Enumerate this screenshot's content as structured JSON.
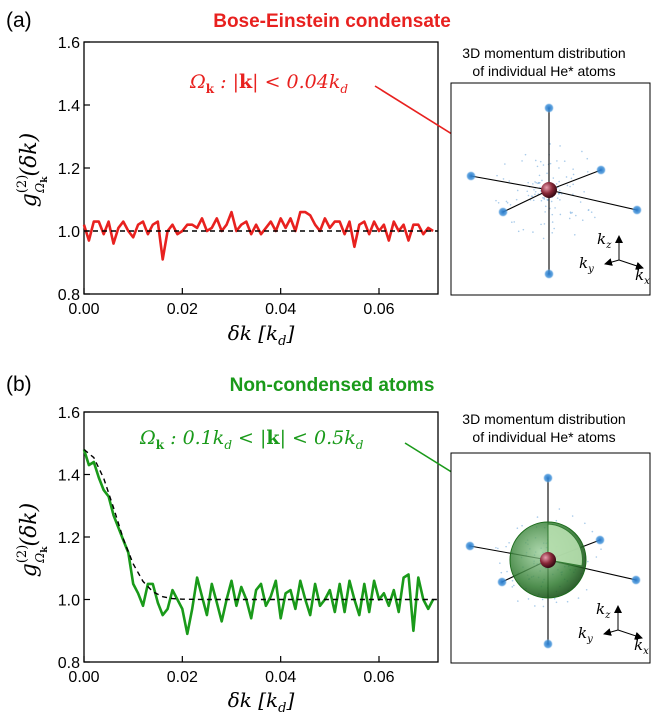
{
  "colors": {
    "bec": "#e8211f",
    "thermal": "#1a9a1a",
    "fit": "#000000",
    "accent_blob": "#3a8ed8",
    "sphere": "#8a2a3a"
  },
  "panels": [
    {
      "label": "(a)",
      "title": "Bose-Einstein condensate",
      "title_color": "#e8211f",
      "annotation": "Ω_k :  |k| < 0.04k_d",
      "inset": {
        "caption_line1": "3D momentum distribution",
        "caption_line2": "of individual He* atoms",
        "axis_labels": [
          "k_z",
          "k_y",
          "k_x"
        ],
        "shell": false
      }
    },
    {
      "label": "(b)",
      "title": "Non-condensed atoms",
      "title_color": "#1a9a1a",
      "annotation": "Ω_k :  0.1k_d < |k| < 0.5k_d",
      "inset": {
        "caption_line1": "3D momentum distribution",
        "caption_line2": "of individual He* atoms",
        "axis_labels": [
          "k_z",
          "k_y",
          "k_x"
        ],
        "shell": true
      }
    }
  ],
  "chart_data": [
    {
      "type": "line",
      "xlabel": "δk [k_d]",
      "ylabel": "g^(2)_Ωk(δk)",
      "xlim": [
        0,
        0.072
      ],
      "ylim": [
        0.8,
        1.6
      ],
      "xticks": [
        0.0,
        0.02,
        0.04,
        0.06
      ],
      "xtick_labels": [
        "0.00",
        "0.02",
        "0.04",
        "0.06"
      ],
      "yticks": [
        0.8,
        1.0,
        1.2,
        1.4,
        1.6
      ],
      "ytick_labels": [
        "0.8",
        "1.0",
        "1.2",
        "1.4",
        "1.6"
      ],
      "grid": false,
      "series": [
        {
          "role": "data",
          "color": "#e8211f",
          "x": [
            0.0,
            0.001,
            0.002,
            0.003,
            0.004,
            0.005,
            0.006,
            0.007,
            0.008,
            0.009,
            0.01,
            0.011,
            0.012,
            0.013,
            0.014,
            0.015,
            0.016,
            0.017,
            0.018,
            0.019,
            0.02,
            0.021,
            0.022,
            0.023,
            0.024,
            0.025,
            0.026,
            0.027,
            0.028,
            0.029,
            0.03,
            0.031,
            0.032,
            0.033,
            0.034,
            0.035,
            0.036,
            0.037,
            0.038,
            0.039,
            0.04,
            0.041,
            0.042,
            0.043,
            0.044,
            0.045,
            0.046,
            0.047,
            0.048,
            0.049,
            0.05,
            0.051,
            0.052,
            0.053,
            0.054,
            0.055,
            0.056,
            0.057,
            0.058,
            0.059,
            0.06,
            0.061,
            0.062,
            0.063,
            0.064,
            0.065,
            0.066,
            0.067,
            0.068,
            0.069,
            0.07,
            0.071
          ],
          "y": [
            1.02,
            0.97,
            1.03,
            1.03,
            0.99,
            1.03,
            0.96,
            1.01,
            1.03,
            1.0,
            0.98,
            1.02,
            1.03,
            0.99,
            1.02,
            1.03,
            0.91,
            1.0,
            1.02,
            0.99,
            1.0,
            1.02,
            1.02,
            1.01,
            1.04,
            1.0,
            1.01,
            1.04,
            1.0,
            1.02,
            1.06,
            1.0,
            1.02,
            1.03,
            0.99,
            1.02,
            0.99,
            1.01,
            1.03,
            1.0,
            1.04,
            1.01,
            1.04,
            1.0,
            1.06,
            1.06,
            1.05,
            1.02,
            1.0,
            1.04,
            1.01,
            1.03,
            1.03,
            0.99,
            1.03,
            0.95,
            1.02,
            1.03,
            0.99,
            1.03,
            1.0,
            1.02,
            0.97,
            1.03,
            1.0,
            1.02,
            0.97,
            1.02,
            1.02,
            0.99,
            1.01,
            1.0
          ]
        },
        {
          "role": "fit",
          "color": "#000000",
          "dash": true,
          "x": [
            0.0,
            0.072
          ],
          "y": [
            1.0,
            1.0
          ]
        }
      ]
    },
    {
      "type": "line",
      "xlabel": "δk [k_d]",
      "ylabel": "g^(2)_Ωk(δk)",
      "xlim": [
        0,
        0.072
      ],
      "ylim": [
        0.8,
        1.6
      ],
      "xticks": [
        0.0,
        0.02,
        0.04,
        0.06
      ],
      "xtick_labels": [
        "0.00",
        "0.02",
        "0.04",
        "0.06"
      ],
      "yticks": [
        0.8,
        1.0,
        1.2,
        1.4,
        1.6
      ],
      "ytick_labels": [
        "0.8",
        "1.0",
        "1.2",
        "1.4",
        "1.6"
      ],
      "grid": false,
      "series": [
        {
          "role": "data",
          "color": "#1a9a1a",
          "x": [
            0.0,
            0.001,
            0.002,
            0.003,
            0.004,
            0.005,
            0.006,
            0.007,
            0.008,
            0.009,
            0.01,
            0.011,
            0.012,
            0.013,
            0.014,
            0.015,
            0.016,
            0.017,
            0.018,
            0.019,
            0.02,
            0.021,
            0.022,
            0.023,
            0.024,
            0.025,
            0.026,
            0.027,
            0.028,
            0.029,
            0.03,
            0.031,
            0.032,
            0.033,
            0.034,
            0.035,
            0.036,
            0.037,
            0.038,
            0.039,
            0.04,
            0.041,
            0.042,
            0.043,
            0.044,
            0.045,
            0.046,
            0.047,
            0.048,
            0.049,
            0.05,
            0.051,
            0.052,
            0.053,
            0.054,
            0.055,
            0.056,
            0.057,
            0.058,
            0.059,
            0.06,
            0.061,
            0.062,
            0.063,
            0.064,
            0.065,
            0.066,
            0.067,
            0.068,
            0.069,
            0.07,
            0.071
          ],
          "y": [
            1.48,
            1.43,
            1.44,
            1.39,
            1.35,
            1.33,
            1.27,
            1.23,
            1.19,
            1.15,
            1.05,
            1.02,
            0.98,
            1.05,
            1.05,
            0.99,
            0.95,
            0.97,
            1.03,
            1.0,
            0.97,
            0.89,
            0.97,
            1.07,
            1.01,
            0.95,
            1.05,
            0.99,
            0.93,
            1.0,
            1.06,
            0.98,
            1.04,
            1.0,
            0.94,
            1.03,
            1.05,
            0.98,
            1.01,
            1.06,
            0.94,
            1.02,
            1.03,
            0.97,
            1.06,
            1.0,
            0.95,
            1.05,
            0.98,
            1.0,
            1.03,
            0.96,
            1.05,
            0.96,
            1.06,
            1.0,
            0.95,
            1.05,
            0.96,
            1.06,
            1.0,
            1.02,
            0.98,
            1.03,
            0.96,
            1.07,
            1.08,
            0.9,
            1.07,
            1.0,
            0.97,
            1.0
          ]
        },
        {
          "role": "fit",
          "color": "#000000",
          "dash": true,
          "x": [
            0.0,
            0.002,
            0.004,
            0.006,
            0.008,
            0.01,
            0.012,
            0.014,
            0.016,
            0.018,
            0.02,
            0.025,
            0.03,
            0.04,
            0.05,
            0.06,
            0.072
          ],
          "y": [
            1.48,
            1.454,
            1.388,
            1.294,
            1.194,
            1.114,
            1.058,
            1.025,
            1.009,
            1.003,
            1.001,
            1.0,
            1.0,
            1.0,
            1.0,
            1.0,
            1.0
          ]
        }
      ]
    }
  ]
}
